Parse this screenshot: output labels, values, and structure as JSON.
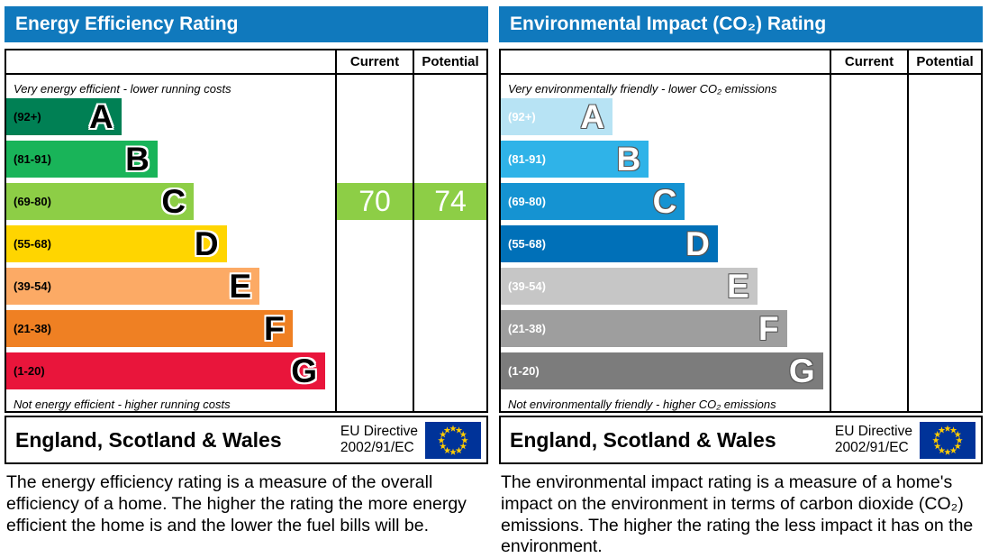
{
  "theme": {
    "header_color": "#1079bd",
    "border_color": "#000000",
    "background": "#ffffff"
  },
  "eu_flag": {
    "bg": "#003399",
    "star_color": "#ffcc00",
    "star_count": 12
  },
  "panels": [
    {
      "title": "Energy Efficiency Rating",
      "current_label": "Current",
      "potential_label": "Potential",
      "top_caption": "Very energy efficient - lower running costs",
      "bottom_caption": "Not energy efficient - higher running costs",
      "text_style": "dark",
      "bands": [
        {
          "range": "(92+)",
          "letter": "A",
          "color": "#008054",
          "width_pct": 35
        },
        {
          "range": "(81-91)",
          "letter": "B",
          "color": "#19b459",
          "width_pct": 46
        },
        {
          "range": "(69-80)",
          "letter": "C",
          "color": "#8dce46",
          "width_pct": 57
        },
        {
          "range": "(55-68)",
          "letter": "D",
          "color": "#ffd500",
          "width_pct": 67
        },
        {
          "range": "(39-54)",
          "letter": "E",
          "color": "#fcaa65",
          "width_pct": 77
        },
        {
          "range": "(21-38)",
          "letter": "F",
          "color": "#ef8023",
          "width_pct": 87
        },
        {
          "range": "(1-20)",
          "letter": "G",
          "color": "#e9153b",
          "width_pct": 97
        }
      ],
      "ratings": {
        "current": {
          "value": "70",
          "band_index": 2,
          "color": "#8dce46"
        },
        "potential": {
          "value": "74",
          "band_index": 2,
          "color": "#8dce46"
        }
      },
      "footer": {
        "region": "England, Scotland & Wales",
        "directive_line1": "EU Directive",
        "directive_line2": "2002/91/EC"
      },
      "description": "The energy efficiency rating is a measure of the overall efficiency of a home. The higher the rating the more energy efficient the home is and the lower the fuel bills will be."
    },
    {
      "title": "Environmental Impact (CO₂) Rating",
      "current_label": "Current",
      "potential_label": "Potential",
      "top_caption": "Very environmentally friendly - lower CO₂ emissions",
      "bottom_caption": "Not environmentally friendly - higher CO₂ emissions",
      "text_style": "light",
      "bands": [
        {
          "range": "(92+)",
          "letter": "A",
          "color": "#b7e3f4",
          "width_pct": 34
        },
        {
          "range": "(81-91)",
          "letter": "B",
          "color": "#2fb3e8",
          "width_pct": 45
        },
        {
          "range": "(69-80)",
          "letter": "C",
          "color": "#1593d2",
          "width_pct": 56
        },
        {
          "range": "(55-68)",
          "letter": "D",
          "color": "#0070b8",
          "width_pct": 66
        },
        {
          "range": "(39-54)",
          "letter": "E",
          "color": "#c6c6c6",
          "width_pct": 78
        },
        {
          "range": "(21-38)",
          "letter": "F",
          "color": "#9e9e9e",
          "width_pct": 87
        },
        {
          "range": "(1-20)",
          "letter": "G",
          "color": "#7c7c7c",
          "width_pct": 98
        }
      ],
      "ratings": {},
      "footer": {
        "region": "England, Scotland & Wales",
        "directive_line1": "EU Directive",
        "directive_line2": "2002/91/EC"
      },
      "description": "The environmental impact rating is a measure of a home's impact on the environment in terms of carbon dioxide (CO₂) emissions. The higher the rating the less impact it has on the environment."
    }
  ],
  "chart_data": [
    {
      "type": "bar",
      "title": "Energy Efficiency Rating",
      "categories": [
        "A",
        "B",
        "C",
        "D",
        "E",
        "F",
        "G"
      ],
      "band_ranges": [
        "92+",
        "81-91",
        "69-80",
        "55-68",
        "39-54",
        "21-38",
        "1-20"
      ],
      "series": [
        {
          "name": "Current",
          "values": [
            70
          ],
          "band": "C"
        },
        {
          "name": "Potential",
          "values": [
            74
          ],
          "band": "C"
        }
      ],
      "ylim": [
        1,
        100
      ],
      "legend_position": "top-right-columns"
    },
    {
      "type": "bar",
      "title": "Environmental Impact (CO₂) Rating",
      "categories": [
        "A",
        "B",
        "C",
        "D",
        "E",
        "F",
        "G"
      ],
      "band_ranges": [
        "92+",
        "81-91",
        "69-80",
        "55-68",
        "39-54",
        "21-38",
        "1-20"
      ],
      "series": [
        {
          "name": "Current",
          "values": []
        },
        {
          "name": "Potential",
          "values": []
        }
      ],
      "ylim": [
        1,
        100
      ],
      "legend_position": "top-right-columns"
    }
  ]
}
